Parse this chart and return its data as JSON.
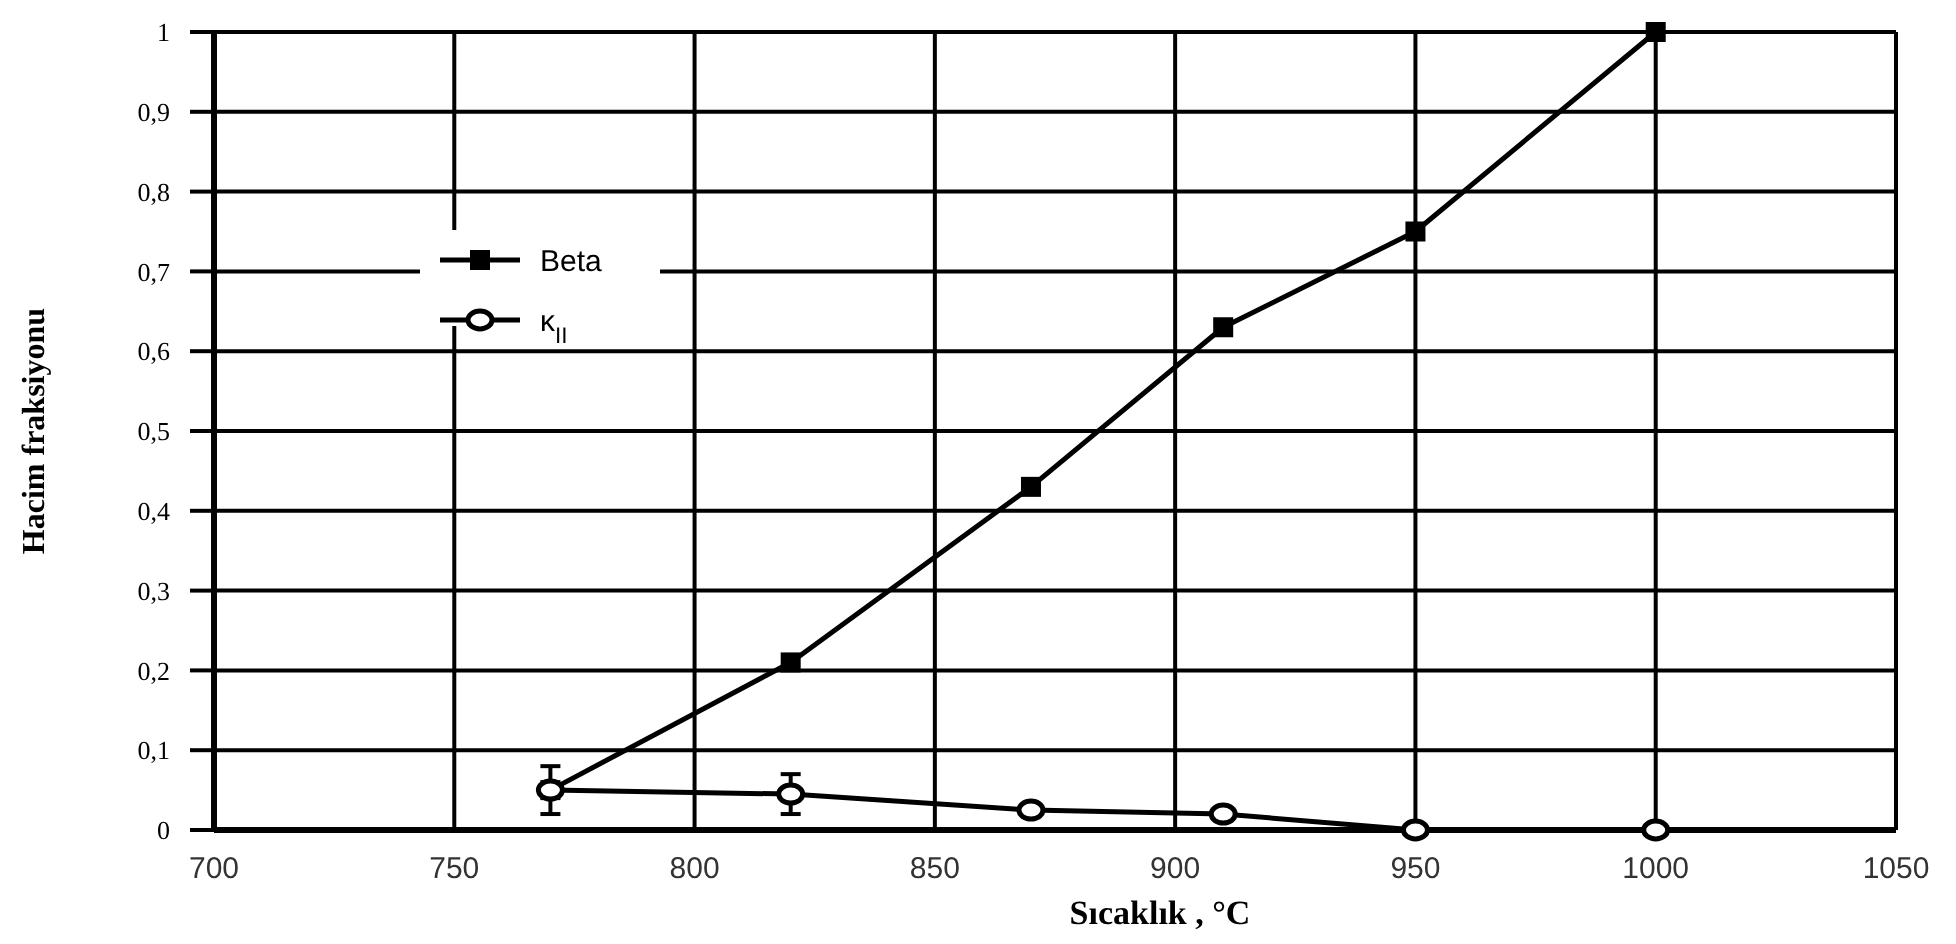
{
  "chart_data": {
    "type": "line",
    "xlabel": "Sıcaklık , °C",
    "ylabel": "Hacim fraksiyonu",
    "xlim": [
      700,
      1050
    ],
    "xticks": [
      700,
      750,
      800,
      850,
      900,
      950,
      1000,
      1050
    ],
    "ylim": [
      0,
      1
    ],
    "yticks": [
      {
        "value": 0,
        "label": "0"
      },
      {
        "value": 0.1,
        "label": "0,1"
      },
      {
        "value": 0.2,
        "label": "0,2"
      },
      {
        "value": 0.3,
        "label": "0,3"
      },
      {
        "value": 0.4,
        "label": "0,4"
      },
      {
        "value": 0.5,
        "label": "0,5"
      },
      {
        "value": 0.6,
        "label": "0,6"
      },
      {
        "value": 0.7,
        "label": "0,7"
      },
      {
        "value": 0.8,
        "label": "0,8"
      },
      {
        "value": 0.9,
        "label": "0,9"
      },
      {
        "value": 1,
        "label": "1"
      }
    ],
    "grid": true,
    "legend": "top left",
    "line_style": "solid",
    "x": [
      770,
      820,
      870,
      910,
      950,
      1000
    ],
    "series": [
      {
        "name": "Beta",
        "color": "#000000",
        "marker": "square",
        "values": [
          0.05,
          0.21,
          0.43,
          0.63,
          0.75,
          1.0
        ]
      },
      {
        "name": "κ$_{II}$",
        "color": "#000000",
        "marker": "circle",
        "values": [
          0.05,
          0.045,
          0.025,
          0.02,
          0.0,
          0.0
        ],
        "errors": [
          0.03,
          0.025,
          null,
          null,
          null,
          null
        ]
      }
    ]
  }
}
